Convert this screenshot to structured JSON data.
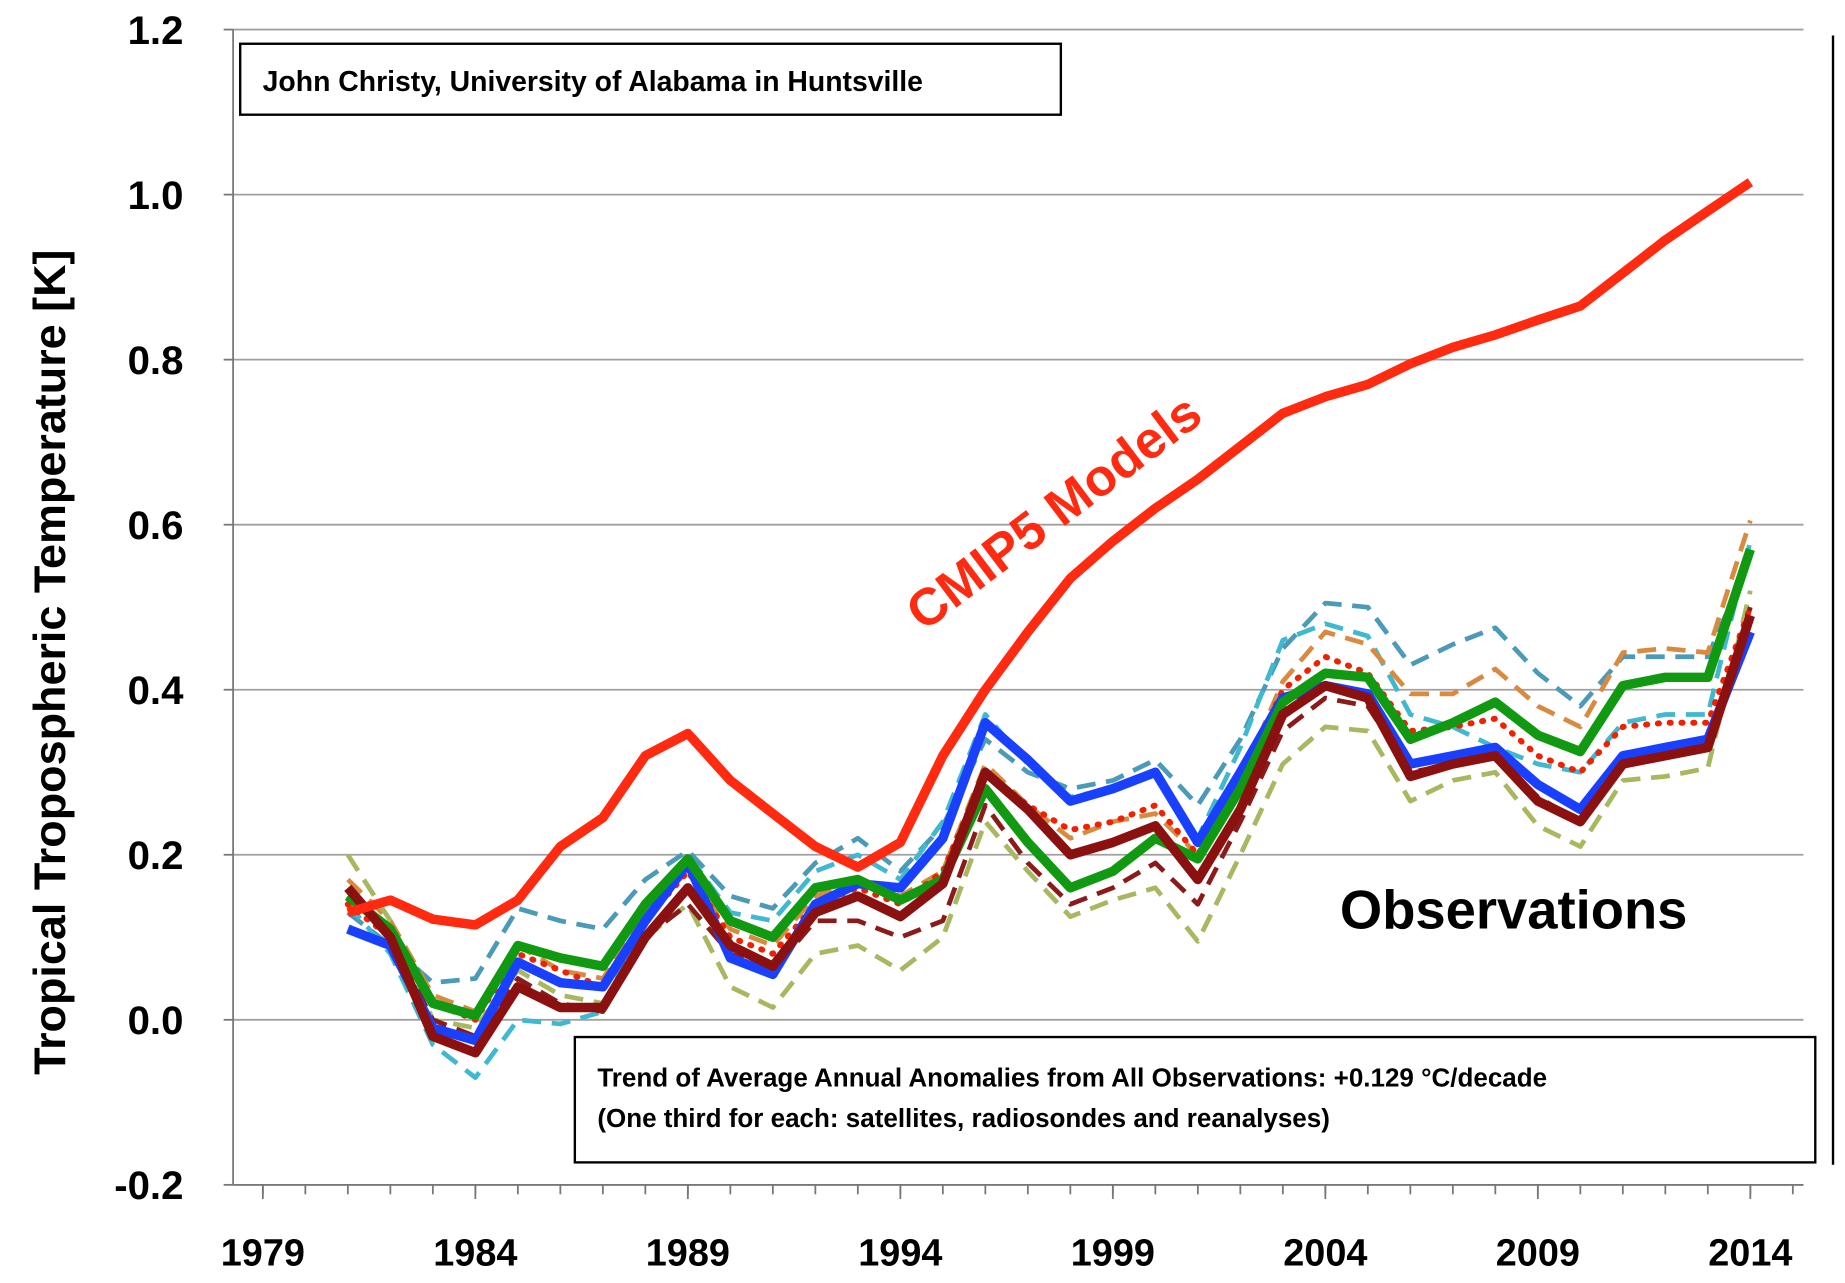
{
  "chart_data": {
    "type": "line",
    "y_label": "Tropical Tropospheric Temperature [K]",
    "annotations": {
      "credit": "John Christy, University of Alabama in Huntsville",
      "models_label": "CMIP5 Models",
      "observations_label": "Observations",
      "trend_line1": "Trend of Average Annual Anomalies from All Observations: +0.129 °C/decade",
      "trend_line2": "(One third for each: satellites, radiosondes and reanalyses)"
    },
    "x": [
      1981,
      1982,
      1983,
      1984,
      1985,
      1986,
      1987,
      1988,
      1989,
      1990,
      1991,
      1992,
      1993,
      1994,
      1995,
      1996,
      1997,
      1998,
      1999,
      2000,
      2001,
      2002,
      2003,
      2004,
      2005,
      2006,
      2007,
      2008,
      2009,
      2010,
      2011,
      2012,
      2013,
      2014
    ],
    "xlim": [
      1978.3,
      2015.25
    ],
    "xticks": [
      1979,
      1984,
      1989,
      1994,
      1999,
      2004,
      2009,
      2014
    ],
    "ylim": [
      -0.2,
      1.2
    ],
    "yticks": [
      -0.2,
      {
        "value": 0,
        "label": "0.0"
      },
      0.2,
      0.4,
      0.6,
      0.8,
      {
        "value": 1,
        "label": "1.0"
      },
      1.2
    ],
    "grid": true,
    "series": [
      {
        "color": "#4a9ab8",
        "style": "dashed",
        "values": [
          0.13,
          0.09,
          0.045,
          0.05,
          0.135,
          0.12,
          0.11,
          0.17,
          0.205,
          0.15,
          0.135,
          0.19,
          0.22,
          0.18,
          0.235,
          0.34,
          0.3,
          0.28,
          0.29,
          0.315,
          0.26,
          0.34,
          0.45,
          0.505,
          0.5,
          0.43,
          0.455,
          0.475,
          0.42,
          0.38,
          0.44,
          0.44,
          0.44,
          0.56
        ]
      },
      {
        "color": "#40b8d0",
        "style": "dashed",
        "values": [
          0.14,
          0.08,
          -0.03,
          -0.07,
          0.0,
          -0.005,
          0.01,
          0.13,
          0.2,
          0.13,
          0.12,
          0.18,
          0.2,
          0.17,
          0.24,
          0.37,
          0.31,
          0.27,
          0.28,
          0.3,
          0.22,
          0.33,
          0.46,
          0.48,
          0.465,
          0.37,
          0.355,
          0.33,
          0.31,
          0.3,
          0.36,
          0.37,
          0.37,
          0.58
        ]
      },
      {
        "color": "#d88a40",
        "style": "dashed",
        "values": [
          0.17,
          0.12,
          0.03,
          0.01,
          0.09,
          0.06,
          0.05,
          0.13,
          0.18,
          0.11,
          0.09,
          0.15,
          0.17,
          0.15,
          0.18,
          0.31,
          0.26,
          0.22,
          0.24,
          0.25,
          0.2,
          0.29,
          0.41,
          0.47,
          0.455,
          0.395,
          0.395,
          0.425,
          0.38,
          0.355,
          0.445,
          0.45,
          0.445,
          0.605
        ]
      },
      {
        "color": "#a8b860",
        "style": "dashed",
        "values": [
          0.2,
          0.12,
          0.0,
          -0.01,
          0.06,
          0.03,
          0.02,
          0.1,
          0.14,
          0.04,
          0.015,
          0.08,
          0.09,
          0.06,
          0.1,
          0.24,
          0.18,
          0.125,
          0.145,
          0.16,
          0.095,
          0.2,
          0.31,
          0.355,
          0.35,
          0.265,
          0.29,
          0.3,
          0.235,
          0.21,
          0.29,
          0.295,
          0.305,
          0.52
        ]
      },
      {
        "color": "#8b1a1a",
        "style": "dashed",
        "values": [
          0.15,
          0.1,
          0.0,
          -0.02,
          0.05,
          0.02,
          0.01,
          0.1,
          0.14,
          0.08,
          0.06,
          0.12,
          0.12,
          0.1,
          0.12,
          0.26,
          0.19,
          0.14,
          0.16,
          0.19,
          0.14,
          0.24,
          0.35,
          0.39,
          0.38,
          0.3,
          0.31,
          0.32,
          0.27,
          0.24,
          0.31,
          0.32,
          0.33,
          0.5
        ]
      },
      {
        "color": "#ee2200",
        "style": "dotted",
        "values": [
          0.14,
          0.1,
          0.02,
          0.0,
          0.08,
          0.06,
          0.04,
          0.12,
          0.18,
          0.1,
          0.08,
          0.14,
          0.16,
          0.14,
          0.18,
          0.3,
          0.26,
          0.23,
          0.24,
          0.26,
          0.2,
          0.29,
          0.4,
          0.44,
          0.42,
          0.35,
          0.355,
          0.365,
          0.32,
          0.3,
          0.355,
          0.36,
          0.36,
          0.5
        ]
      },
      {
        "color": "#1a40ff",
        "style": "solid",
        "values": [
          0.11,
          0.09,
          -0.01,
          -0.025,
          0.07,
          0.045,
          0.04,
          0.12,
          0.19,
          0.075,
          0.055,
          0.14,
          0.165,
          0.16,
          0.22,
          0.36,
          0.315,
          0.265,
          0.28,
          0.3,
          0.215,
          0.3,
          0.39,
          0.405,
          0.395,
          0.31,
          0.32,
          0.33,
          0.285,
          0.255,
          0.32,
          0.33,
          0.34,
          0.47
        ]
      },
      {
        "color": "#119911",
        "style": "solid",
        "values": [
          0.15,
          0.11,
          0.02,
          0.005,
          0.09,
          0.075,
          0.065,
          0.14,
          0.195,
          0.12,
          0.1,
          0.16,
          0.17,
          0.145,
          0.17,
          0.28,
          0.215,
          0.16,
          0.18,
          0.22,
          0.195,
          0.28,
          0.385,
          0.42,
          0.415,
          0.34,
          0.36,
          0.385,
          0.345,
          0.325,
          0.405,
          0.415,
          0.415,
          0.57
        ]
      },
      {
        "color": "#8b1010",
        "style": "solid",
        "values": [
          0.16,
          0.1,
          -0.02,
          -0.04,
          0.04,
          0.015,
          0.015,
          0.1,
          0.16,
          0.09,
          0.065,
          0.13,
          0.15,
          0.125,
          0.165,
          0.3,
          0.255,
          0.2,
          0.215,
          0.235,
          0.17,
          0.255,
          0.37,
          0.405,
          0.39,
          0.295,
          0.31,
          0.32,
          0.265,
          0.24,
          0.31,
          0.32,
          0.33,
          0.49
        ]
      },
      {
        "color": "#ff2a10",
        "style": "solid",
        "values": [
          0.13,
          0.145,
          0.122,
          0.115,
          0.145,
          0.21,
          0.245,
          0.32,
          0.347,
          0.29,
          0.25,
          0.21,
          0.185,
          0.215,
          0.32,
          0.4,
          0.47,
          0.535,
          0.58,
          0.62,
          0.655,
          0.695,
          0.735,
          0.755,
          0.77,
          0.795,
          0.815,
          0.83,
          0.848,
          0.865,
          0.905,
          0.945,
          0.98,
          1.015
        ]
      }
    ]
  }
}
